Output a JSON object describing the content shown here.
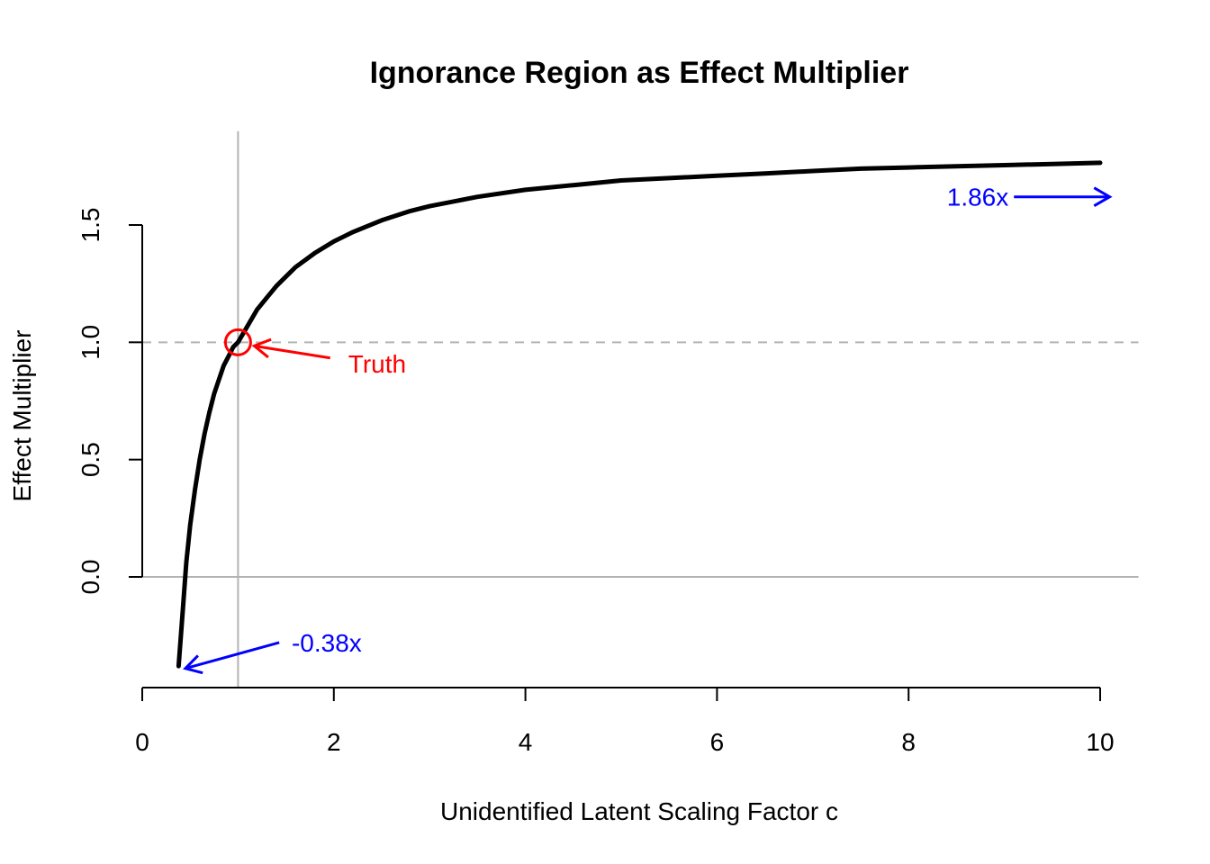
{
  "chart_data": {
    "type": "line",
    "title": "Ignorance Region as Effect Multiplier",
    "xlabel": "Unidentified Latent Scaling Factor c",
    "ylabel": "Effect Multiplier",
    "xlim": [
      0,
      10.4
    ],
    "ylim": [
      -0.47,
      1.9
    ],
    "xticks": [
      0,
      2,
      4,
      6,
      8,
      10
    ],
    "yticks": [
      0.0,
      0.5,
      1.0,
      1.5
    ],
    "xtick_labels": [
      "0",
      "2",
      "4",
      "6",
      "8",
      "10"
    ],
    "ytick_labels": [
      "0.0",
      "0.5",
      "1.0",
      "1.5"
    ],
    "grid": false,
    "reference_lines": [
      {
        "axis": "y",
        "value": 1.0,
        "style": "dashed",
        "color": "#b3b3b3"
      },
      {
        "axis": "y",
        "value": 0.0,
        "style": "solid",
        "color": "#b3b3b3"
      },
      {
        "axis": "x",
        "value": 1.0,
        "style": "solid",
        "color": "#b3b3b3"
      }
    ],
    "series": [
      {
        "color": "#000000",
        "x": [
          0.38,
          0.42,
          0.46,
          0.5,
          0.55,
          0.6,
          0.65,
          0.7,
          0.75,
          0.8,
          0.85,
          0.9,
          0.95,
          1.0,
          1.1,
          1.2,
          1.3,
          1.4,
          1.5,
          1.6,
          1.8,
          2.0,
          2.2,
          2.5,
          2.8,
          3.0,
          3.5,
          4.0,
          4.5,
          5.0,
          5.5,
          6.0,
          6.5,
          7.0,
          7.5,
          8.0,
          8.5,
          9.0,
          9.5,
          10.0
        ],
        "y": [
          -0.38,
          -0.16,
          0.06,
          0.22,
          0.37,
          0.5,
          0.61,
          0.7,
          0.78,
          0.84,
          0.9,
          0.94,
          0.98,
          1.0,
          1.07,
          1.14,
          1.19,
          1.24,
          1.28,
          1.32,
          1.38,
          1.43,
          1.47,
          1.52,
          1.56,
          1.58,
          1.62,
          1.65,
          1.67,
          1.69,
          1.7,
          1.71,
          1.72,
          1.73,
          1.74,
          1.745,
          1.75,
          1.755,
          1.76,
          1.765
        ]
      }
    ],
    "annotations": [
      {
        "text": "Truth",
        "color": "#ff0000",
        "x": 2.15,
        "y": 0.91,
        "point": {
          "x": 1.0,
          "y": 1.0
        },
        "marker": "open-circle"
      },
      {
        "text": "-0.38x",
        "color": "#0000ff",
        "x": 1.56,
        "y": -0.28,
        "arrow_from": {
          "x": 1.43,
          "y": -0.28
        },
        "arrow_to": {
          "x": 0.45,
          "y": -0.39
        }
      },
      {
        "text": "1.86x",
        "color": "#0000ff",
        "x": 8.4,
        "y": 1.62,
        "arrow_from": {
          "x": 9.1,
          "y": 1.62
        },
        "arrow_to": {
          "x": 10.1,
          "y": 1.62
        }
      }
    ]
  }
}
